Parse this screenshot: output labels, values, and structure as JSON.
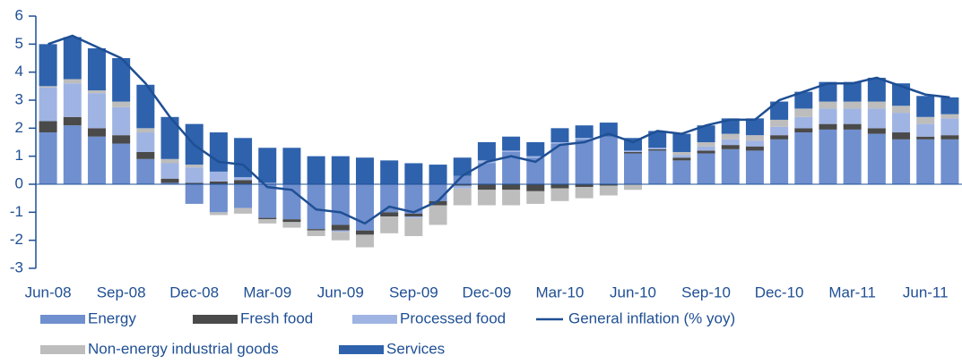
{
  "chart_data": {
    "type": "bar",
    "stacked": true,
    "categories": [
      "Jun-08",
      null,
      null,
      "Sep-08",
      null,
      null,
      "Dec-08",
      null,
      null,
      "Mar-09",
      null,
      null,
      "Jun-09",
      null,
      null,
      "Sep-09",
      null,
      null,
      "Dec-09",
      null,
      null,
      "Mar-10",
      null,
      null,
      "Jun-10",
      null,
      null,
      "Sep-10",
      null,
      null,
      "Dec-10",
      null,
      null,
      "Mar-11",
      null,
      null,
      "Jun-11",
      null
    ],
    "series": [
      {
        "name": "Energy",
        "color": "#6f8fcf",
        "values": [
          1.85,
          2.1,
          1.7,
          1.45,
          0.9,
          0.05,
          -0.7,
          -1.0,
          -0.85,
          -1.2,
          -1.25,
          -1.6,
          -1.45,
          -1.65,
          -1.0,
          -1.05,
          -0.6,
          0.3,
          0.75,
          1.15,
          0.95,
          1.45,
          1.6,
          1.7,
          1.1,
          1.2,
          0.85,
          1.1,
          1.25,
          1.2,
          1.6,
          1.85,
          1.95,
          1.95,
          1.8,
          1.6,
          1.6,
          1.6
        ]
      },
      {
        "name": "Fresh food",
        "color": "#4a4a4a",
        "values": [
          0.4,
          0.3,
          0.3,
          0.3,
          0.25,
          0.15,
          0.05,
          0.1,
          0.15,
          -0.05,
          -0.1,
          -0.05,
          -0.2,
          -0.15,
          -0.15,
          -0.1,
          -0.15,
          -0.05,
          -0.2,
          -0.2,
          -0.25,
          -0.15,
          -0.1,
          -0.05,
          0.05,
          0.05,
          0.1,
          0.1,
          0.15,
          0.15,
          0.15,
          0.15,
          0.2,
          0.2,
          0.2,
          0.25,
          0.1,
          0.15
        ]
      },
      {
        "name": "Processed food",
        "color": "#9fb4e3",
        "values": [
          1.2,
          1.2,
          1.25,
          1.0,
          0.7,
          0.55,
          0.55,
          0.35,
          0.1,
          0.05,
          0.0,
          0.0,
          -0.05,
          0.0,
          0.0,
          -0.05,
          0.0,
          -0.1,
          0.1,
          0.05,
          0.05,
          0.05,
          0.05,
          0.0,
          0.05,
          0.05,
          0.1,
          0.15,
          0.2,
          0.2,
          0.3,
          0.4,
          0.55,
          0.55,
          0.7,
          0.7,
          0.45,
          0.6
        ]
      },
      {
        "name": "General inflation (% yoy)",
        "type": "line",
        "color": "#1f4f94",
        "values": [
          5.0,
          5.3,
          4.9,
          4.5,
          3.6,
          2.4,
          1.4,
          0.8,
          0.7,
          -0.1,
          -0.2,
          -0.9,
          -1.0,
          -1.4,
          -0.8,
          -1.0,
          -0.6,
          0.3,
          0.8,
          1.0,
          0.8,
          1.4,
          1.5,
          1.8,
          1.5,
          1.9,
          1.8,
          2.1,
          2.3,
          2.3,
          3.0,
          3.3,
          3.6,
          3.6,
          3.8,
          3.5,
          3.2,
          3.1
        ]
      },
      {
        "name": "Non-energy industrial goods",
        "color": "#bdbdbd",
        "values": [
          0.05,
          0.15,
          0.1,
          0.2,
          0.15,
          0.15,
          0.1,
          -0.1,
          -0.2,
          -0.15,
          -0.2,
          -0.2,
          -0.3,
          -0.45,
          -0.6,
          -0.65,
          -0.7,
          -0.6,
          -0.55,
          -0.55,
          -0.45,
          -0.45,
          -0.4,
          -0.35,
          -0.2,
          0.0,
          0.1,
          0.15,
          0.2,
          0.2,
          0.25,
          0.3,
          0.25,
          0.25,
          0.25,
          0.25,
          0.25,
          0.15
        ]
      },
      {
        "name": "Services",
        "color": "#2e62ad",
        "values": [
          1.5,
          1.5,
          1.5,
          1.55,
          1.55,
          1.5,
          1.45,
          1.4,
          1.4,
          1.25,
          1.3,
          1.0,
          1.0,
          0.95,
          0.85,
          0.75,
          0.7,
          0.65,
          0.65,
          0.5,
          0.5,
          0.5,
          0.45,
          0.5,
          0.45,
          0.6,
          0.65,
          0.6,
          0.55,
          0.6,
          0.65,
          0.6,
          0.7,
          0.7,
          0.85,
          0.8,
          0.75,
          0.6
        ]
      }
    ],
    "ylim": [
      -3,
      6
    ],
    "yticks": [
      -3,
      -2,
      -1,
      0,
      1,
      2,
      3,
      4,
      5,
      6
    ]
  }
}
